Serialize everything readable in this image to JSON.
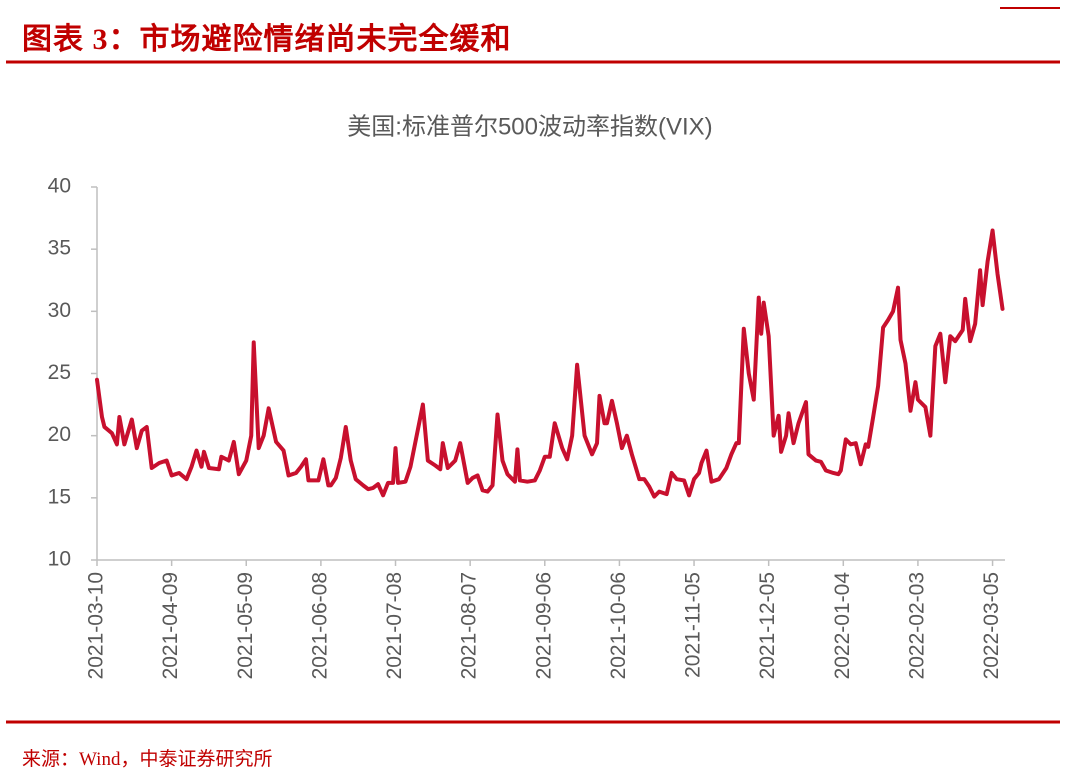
{
  "header": {
    "title": "图表 3：市场避险情绪尚未完全缓和"
  },
  "source": "来源：Wind，中泰证券研究所",
  "chart_data": {
    "type": "line",
    "title": "美国:标准普尔500波动率指数(VIX)",
    "color": "#c8102e",
    "x": [
      "2021-03-10",
      "2021-03-12",
      "2021-03-13",
      "2021-03-16",
      "2021-03-18",
      "2021-03-19",
      "2021-03-21",
      "2021-03-24",
      "2021-03-26",
      "2021-03-28",
      "2021-03-30",
      "2021-04-01",
      "2021-04-04",
      "2021-04-07",
      "2021-04-09",
      "2021-04-12",
      "2021-04-15",
      "2021-04-17",
      "2021-04-19",
      "2021-04-21",
      "2021-04-22",
      "2021-04-24",
      "2021-04-28",
      "2021-04-29",
      "2021-05-02",
      "2021-05-04",
      "2021-05-06",
      "2021-05-09",
      "2021-05-11",
      "2021-05-12",
      "2021-05-14",
      "2021-05-16",
      "2021-05-18",
      "2021-05-21",
      "2021-05-24",
      "2021-05-26",
      "2021-05-29",
      "2021-05-31",
      "2021-06-02",
      "2021-06-03",
      "2021-06-07",
      "2021-06-09",
      "2021-06-11",
      "2021-06-12",
      "2021-06-14",
      "2021-06-16",
      "2021-06-18",
      "2021-06-20",
      "2021-06-22",
      "2021-06-25",
      "2021-06-27",
      "2021-06-29",
      "2021-07-01",
      "2021-07-03",
      "2021-07-05",
      "2021-07-07",
      "2021-07-08",
      "2021-07-09",
      "2021-07-12",
      "2021-07-14",
      "2021-07-16",
      "2021-07-19",
      "2021-07-21",
      "2021-07-24",
      "2021-07-26",
      "2021-07-27",
      "2021-07-29",
      "2021-08-01",
      "2021-08-03",
      "2021-08-06",
      "2021-08-08",
      "2021-08-10",
      "2021-08-12",
      "2021-08-14",
      "2021-08-16",
      "2021-08-18",
      "2021-08-20",
      "2021-08-22",
      "2021-08-25",
      "2021-08-26",
      "2021-08-27",
      "2021-08-30",
      "2021-09-02",
      "2021-09-04",
      "2021-09-06",
      "2021-09-08",
      "2021-09-10",
      "2021-09-13",
      "2021-09-15",
      "2021-09-17",
      "2021-09-19",
      "2021-09-22",
      "2021-09-25",
      "2021-09-27",
      "2021-09-28",
      "2021-09-30",
      "2021-10-01",
      "2021-10-03",
      "2021-10-05",
      "2021-10-07",
      "2021-10-09",
      "2021-10-11",
      "2021-10-14",
      "2021-10-16",
      "2021-10-18",
      "2021-10-20",
      "2021-10-22",
      "2021-10-25",
      "2021-10-27",
      "2021-10-29",
      "2021-11-01",
      "2021-11-03",
      "2021-11-05",
      "2021-11-07",
      "2021-11-08",
      "2021-11-10",
      "2021-11-12",
      "2021-11-15",
      "2021-11-18",
      "2021-11-20",
      "2021-11-22",
      "2021-11-23",
      "2021-11-25",
      "2021-11-27",
      "2021-11-29",
      "2021-12-01",
      "2021-12-02",
      "2021-12-03",
      "2021-12-05",
      "2021-12-07",
      "2021-12-09",
      "2021-12-10",
      "2021-12-12",
      "2021-12-13",
      "2021-12-15",
      "2021-12-17",
      "2021-12-20",
      "2021-12-21",
      "2021-12-24",
      "2021-12-26",
      "2021-12-28",
      "2021-12-31",
      "2022-01-02",
      "2022-01-03",
      "2022-01-05",
      "2022-01-07",
      "2022-01-09",
      "2022-01-11",
      "2022-01-13",
      "2022-01-14",
      "2022-01-16",
      "2022-01-18",
      "2022-01-20",
      "2022-01-22",
      "2022-01-24",
      "2022-01-26",
      "2022-01-27",
      "2022-01-29",
      "2022-01-31",
      "2022-02-02",
      "2022-02-03",
      "2022-02-06",
      "2022-02-08",
      "2022-02-10",
      "2022-02-12",
      "2022-02-14",
      "2022-02-16",
      "2022-02-18",
      "2022-02-21",
      "2022-02-22",
      "2022-02-24",
      "2022-02-26",
      "2022-02-28",
      "2022-03-01",
      "2022-03-03",
      "2022-03-05",
      "2022-03-07",
      "2022-03-09"
    ],
    "values": [
      24.5,
      21.5,
      20.7,
      20.2,
      19.3,
      21.5,
      19.3,
      21.3,
      19.0,
      20.4,
      20.7,
      17.4,
      17.8,
      18.0,
      16.8,
      17.0,
      16.5,
      17.5,
      18.8,
      17.5,
      18.7,
      17.4,
      17.3,
      18.3,
      18.0,
      19.5,
      16.9,
      18.0,
      20.0,
      27.5,
      19.0,
      20.0,
      22.2,
      19.5,
      18.8,
      16.8,
      17.0,
      17.5,
      18.1,
      16.4,
      16.4,
      18.1,
      16.0,
      16.0,
      16.6,
      18.2,
      20.7,
      18.0,
      16.5,
      16.0,
      15.7,
      15.8,
      16.1,
      15.2,
      16.2,
      16.2,
      19.0,
      16.2,
      16.3,
      17.5,
      19.5,
      22.5,
      18.0,
      17.6,
      17.3,
      19.4,
      17.4,
      18.0,
      19.4,
      16.2,
      16.6,
      16.8,
      15.6,
      15.5,
      16.0,
      21.7,
      18.0,
      16.9,
      16.3,
      18.9,
      16.4,
      16.3,
      16.4,
      17.2,
      18.3,
      18.3,
      21.0,
      19.0,
      18.1,
      20.0,
      25.7,
      20.0,
      18.5,
      19.4,
      23.2,
      21.0,
      21.0,
      22.8,
      21.0,
      19.0,
      20.0,
      18.5,
      16.5,
      16.5,
      15.9,
      15.1,
      15.5,
      15.3,
      17.0,
      16.5,
      16.4,
      15.2,
      16.5,
      17.0,
      17.8,
      18.8,
      16.3,
      16.5,
      17.4,
      18.5,
      19.4,
      19.4,
      28.6,
      25.0,
      22.9,
      31.1,
      28.2,
      30.7,
      28.0,
      20.0,
      21.6,
      18.7,
      20.0,
      21.8,
      19.4,
      21.0,
      22.7,
      18.5,
      18.0,
      17.9,
      17.2,
      17.0,
      16.9,
      17.2,
      19.7,
      19.3,
      19.4,
      17.7,
      19.3,
      19.1,
      21.5,
      24.0,
      28.7,
      29.3,
      30.0,
      31.9,
      27.7,
      25.8,
      22.0,
      24.3,
      22.9,
      22.3,
      20.0,
      27.2,
      28.2,
      24.3,
      28.0,
      27.6,
      28.5,
      31.0,
      27.6,
      29.0,
      33.3,
      30.5,
      34.0,
      36.5,
      33.0,
      30.2
    ],
    "xlim": [
      "2021-03-10",
      "2022-03-10"
    ],
    "xticks": [
      "2021-03-10",
      "2021-04-09",
      "2021-05-09",
      "2021-06-08",
      "2021-07-08",
      "2021-08-07",
      "2021-09-06",
      "2021-10-06",
      "2021-11-05",
      "2021-12-05",
      "2022-01-04",
      "2022-02-03",
      "2022-03-05"
    ],
    "ylim": [
      10,
      40
    ],
    "yticks": [
      10,
      15,
      20,
      25,
      30,
      35,
      40
    ],
    "grid": false
  }
}
